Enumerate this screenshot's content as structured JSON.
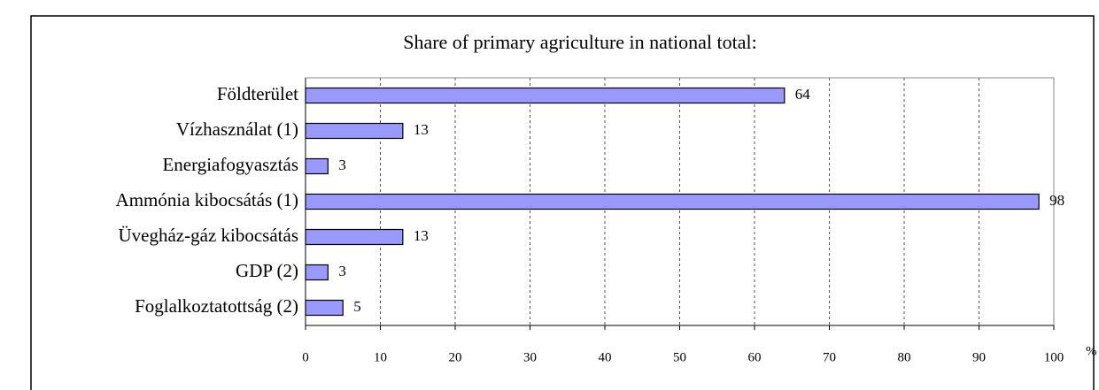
{
  "chart_data": {
    "type": "barh",
    "title": "Share of primary agriculture in national total:",
    "categories": [
      "Földterület",
      "Vízhasználat (1)",
      "Energiafogyasztás",
      "Ammónia kibocsátás (1)",
      "Üvegház-gáz kibocsátás",
      "GDP (2)",
      "Foglalkoztatottság (2)"
    ],
    "values": [
      64,
      13,
      3,
      98,
      13,
      3,
      5
    ],
    "color": "#9999ff",
    "xlabel": "%",
    "xlim": [
      0,
      100
    ],
    "xticks": [
      0,
      10,
      20,
      30,
      40,
      50,
      60,
      70,
      80,
      90,
      100
    ],
    "grid": true
  }
}
